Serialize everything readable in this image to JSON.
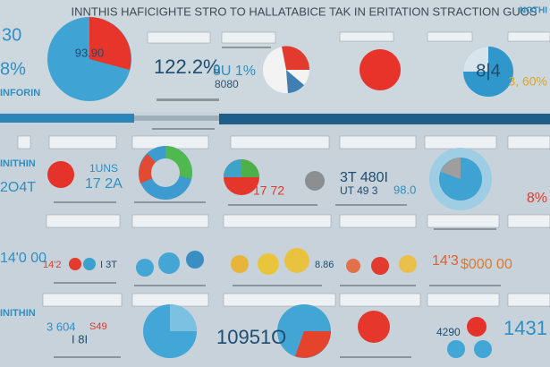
{
  "header": {
    "title": "INNTHIS HAFICIGHTE STRO TO HALLATABICE TAK IN ERITATION STRACTION GUOS"
  },
  "labels": [
    "30",
    "8%",
    "INFORIN",
    "93.90",
    "122.2%",
    "8U 1%",
    "8080",
    "8|4",
    "3, 60%",
    "NOTHI",
    "2O4T",
    "1UNS",
    "17 2A",
    "17 72",
    "3T 480I",
    "UT 49 3",
    "98.0",
    "8%",
    "INITHIN",
    "14'0 00",
    "14'2",
    "I 3T",
    "8.86",
    "14'3",
    "$000 00",
    "INITHIN",
    "3 604",
    "I 8I",
    "10951O",
    "4290",
    "1431",
    "S49"
  ]
}
